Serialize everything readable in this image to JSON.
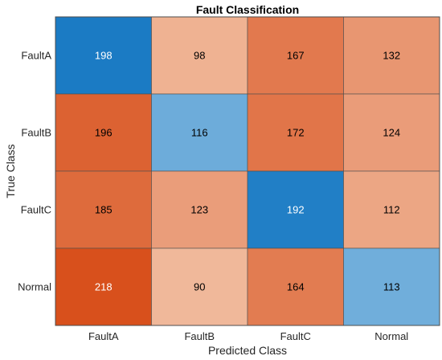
{
  "chart_data": {
    "type": "heatmap",
    "title": "Fault Classification",
    "xlabel": "Predicted Class",
    "ylabel": "True Class",
    "x_categories": [
      "FaultA",
      "FaultB",
      "FaultC",
      "Normal"
    ],
    "y_categories": [
      "FaultA",
      "FaultB",
      "FaultC",
      "Normal"
    ],
    "values": [
      [
        198,
        98,
        167,
        132
      ],
      [
        196,
        116,
        172,
        124
      ],
      [
        185,
        123,
        192,
        112
      ],
      [
        218,
        90,
        164,
        113
      ]
    ],
    "colors": {
      "diagonal_light": "#70aedb",
      "diagonal_dark": "#1b7bc4",
      "offdiag_light": "#f0b89a",
      "offdiag_dark": "#d8501c",
      "text_light": "#ffffff",
      "text_dark": "#000000",
      "grid": "#4d4d4d"
    }
  }
}
